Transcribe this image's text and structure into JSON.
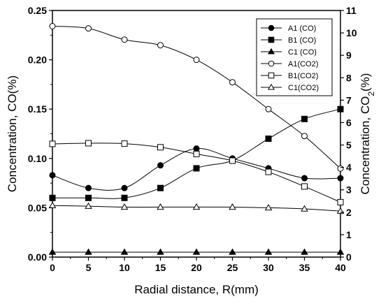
{
  "chart_data": {
    "type": "line",
    "xlabel": "Radial distance, R(mm)",
    "ylabel_left": "Concentration, CO(%)",
    "ylabel_right_main": "Concentration, CO",
    "ylabel_right_sub": "2",
    "ylabel_right_tail": "(%)",
    "x": [
      0,
      5,
      10,
      15,
      20,
      25,
      30,
      35,
      40
    ],
    "xlim": [
      0,
      40
    ],
    "ylim_left": [
      0,
      0.25
    ],
    "ylim_right": [
      0,
      11
    ],
    "x_ticks": [
      "0",
      "5",
      "10",
      "15",
      "20",
      "25",
      "30",
      "35",
      "40"
    ],
    "y_left_ticks": [
      "0.00",
      "0.05",
      "0.10",
      "0.15",
      "0.20",
      "0.25"
    ],
    "y_right_ticks": [
      "0",
      "1",
      "2",
      "3",
      "4",
      "5",
      "6",
      "7",
      "8",
      "9",
      "10",
      "11"
    ],
    "grid": false,
    "legend_position": "top-right",
    "series": [
      {
        "name": "A1 (CO)",
        "axis": "left",
        "marker": "circle",
        "filled": true,
        "values": [
          0.083,
          0.07,
          0.07,
          0.093,
          0.11,
          0.1,
          0.09,
          0.08,
          0.08
        ]
      },
      {
        "name": "B1 (CO)",
        "axis": "left",
        "marker": "square",
        "filled": true,
        "values": [
          0.06,
          0.06,
          0.06,
          0.07,
          0.09,
          0.098,
          0.12,
          0.14,
          0.15
        ]
      },
      {
        "name": "C1 (CO)",
        "axis": "left",
        "marker": "triangle",
        "filled": true,
        "values": [
          0.005,
          0.005,
          0.005,
          0.005,
          0.005,
          0.005,
          0.005,
          0.005,
          0.005
        ]
      },
      {
        "name": "A1(CO2)",
        "axis": "right",
        "marker": "circle",
        "filled": false,
        "values": [
          10.3,
          10.2,
          9.7,
          9.45,
          8.8,
          7.8,
          6.6,
          5.4,
          3.95
        ]
      },
      {
        "name": "B1(CO2)",
        "axis": "right",
        "marker": "square",
        "filled": false,
        "values": [
          5.05,
          5.08,
          5.06,
          4.9,
          4.6,
          4.3,
          3.8,
          3.15,
          2.45
        ]
      },
      {
        "name": "C1(CO2)",
        "axis": "right",
        "marker": "triangle",
        "filled": false,
        "values": [
          2.3,
          2.27,
          2.23,
          2.23,
          2.23,
          2.23,
          2.2,
          2.15,
          2.05
        ]
      }
    ]
  }
}
